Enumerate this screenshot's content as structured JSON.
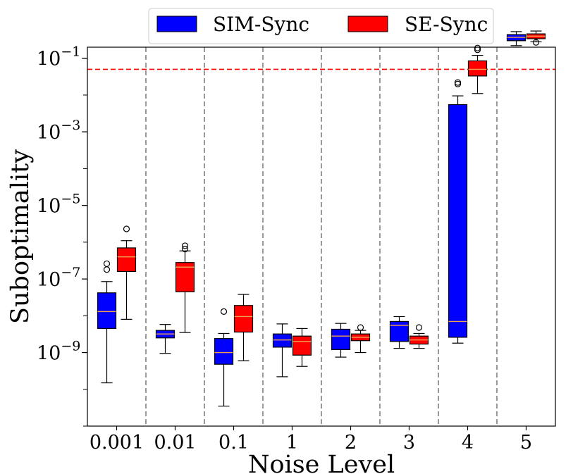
{
  "chart_data": {
    "type": "box",
    "xlabel": "Noise Level",
    "ylabel": "Suboptimality",
    "yscale": "log",
    "ylim": [
      1e-11,
      0.2
    ],
    "y_ticks": [
      {
        "exp": -1,
        "base": "10",
        "sup": "−1"
      },
      {
        "exp": -3,
        "base": "10",
        "sup": "−3"
      },
      {
        "exp": -5,
        "base": "10",
        "sup": "−5"
      },
      {
        "exp": -7,
        "base": "10",
        "sup": "−7"
      },
      {
        "exp": -9,
        "base": "10",
        "sup": "−9"
      }
    ],
    "categories": [
      "0.001",
      "0.01",
      "0.1",
      "1",
      "2",
      "3",
      "4",
      "5"
    ],
    "threshold": {
      "value": 0.05,
      "color": "#ff0000",
      "style": "dashed"
    },
    "legend": {
      "position": "top-center"
    },
    "series": [
      {
        "name": "SIM-Sync",
        "color": "#0000ff",
        "boxes": [
          {
            "whislo": 1.5e-10,
            "q1": 4.5e-09,
            "med": 1.3e-08,
            "q3": 4.2e-08,
            "whishi": 8.5e-08,
            "fliers": [
              1.8e-07,
              2.6e-07
            ]
          },
          {
            "whislo": 9.5e-10,
            "q1": 2.5e-09,
            "med": 3.2e-09,
            "q3": 4e-09,
            "whishi": 5.8e-09,
            "fliers": []
          },
          {
            "whislo": 3.5e-11,
            "q1": 4.8e-10,
            "med": 1e-09,
            "q3": 2.4e-09,
            "whishi": 3.3e-09,
            "fliers": [
              1.3e-08
            ]
          },
          {
            "whislo": 2.2e-10,
            "q1": 1.4e-09,
            "med": 2.2e-09,
            "q3": 3.2e-09,
            "whishi": 6e-09,
            "fliers": []
          },
          {
            "whislo": 7.5e-10,
            "q1": 1.2e-09,
            "med": 2.8e-09,
            "q3": 4.3e-09,
            "whishi": 6.2e-09,
            "fliers": []
          },
          {
            "whislo": 1.3e-09,
            "q1": 2e-09,
            "med": 5.5e-09,
            "q3": 7e-09,
            "whishi": 9.5e-09,
            "fliers": []
          },
          {
            "whislo": 1.8e-09,
            "q1": 2.6e-09,
            "med": 7e-09,
            "q3": 0.0055,
            "whishi": 0.0095,
            "fliers": [
              0.02,
              0.022
            ]
          },
          {
            "whislo": 0.22,
            "q1": 0.3,
            "med": 0.37,
            "q3": 0.44,
            "whishi": 0.53,
            "fliers": []
          }
        ]
      },
      {
        "name": "SE-Sync",
        "color": "#ff0000",
        "boxes": [
          {
            "whislo": 8e-09,
            "q1": 1.6e-07,
            "med": 4e-07,
            "q3": 7e-07,
            "whishi": 1.1e-06,
            "fliers": [
              2.3e-06
            ]
          },
          {
            "whislo": 3.5e-09,
            "q1": 4.5e-08,
            "med": 2.1e-07,
            "q3": 2.8e-07,
            "whishi": 5.8e-07,
            "fliers": [
              6.5e-07,
              8e-07
            ]
          },
          {
            "whislo": 6e-10,
            "q1": 3.6e-09,
            "med": 9.5e-09,
            "q3": 1.9e-08,
            "whishi": 3.8e-08,
            "fliers": []
          },
          {
            "whislo": 4.2e-10,
            "q1": 8.5e-10,
            "med": 2e-09,
            "q3": 2.8e-09,
            "whishi": 4.5e-09,
            "fliers": []
          },
          {
            "whislo": 1e-09,
            "q1": 2.1e-09,
            "med": 2.6e-09,
            "q3": 3.2e-09,
            "whishi": 4e-09,
            "fliers": [
              4.8e-09
            ]
          },
          {
            "whislo": 1.3e-09,
            "q1": 1.7e-09,
            "med": 2.2e-09,
            "q3": 2.8e-09,
            "whishi": 3.3e-09,
            "fliers": [
              4.8e-09
            ]
          },
          {
            "whislo": 0.011,
            "q1": 0.033,
            "med": 0.05,
            "q3": 0.085,
            "whishi": 0.12,
            "fliers": [
              0.17,
              0.19
            ]
          },
          {
            "whislo": 0.28,
            "q1": 0.34,
            "med": 0.4,
            "q3": 0.46,
            "whishi": 0.55,
            "fliers": [
              0.27
            ]
          }
        ]
      }
    ]
  }
}
